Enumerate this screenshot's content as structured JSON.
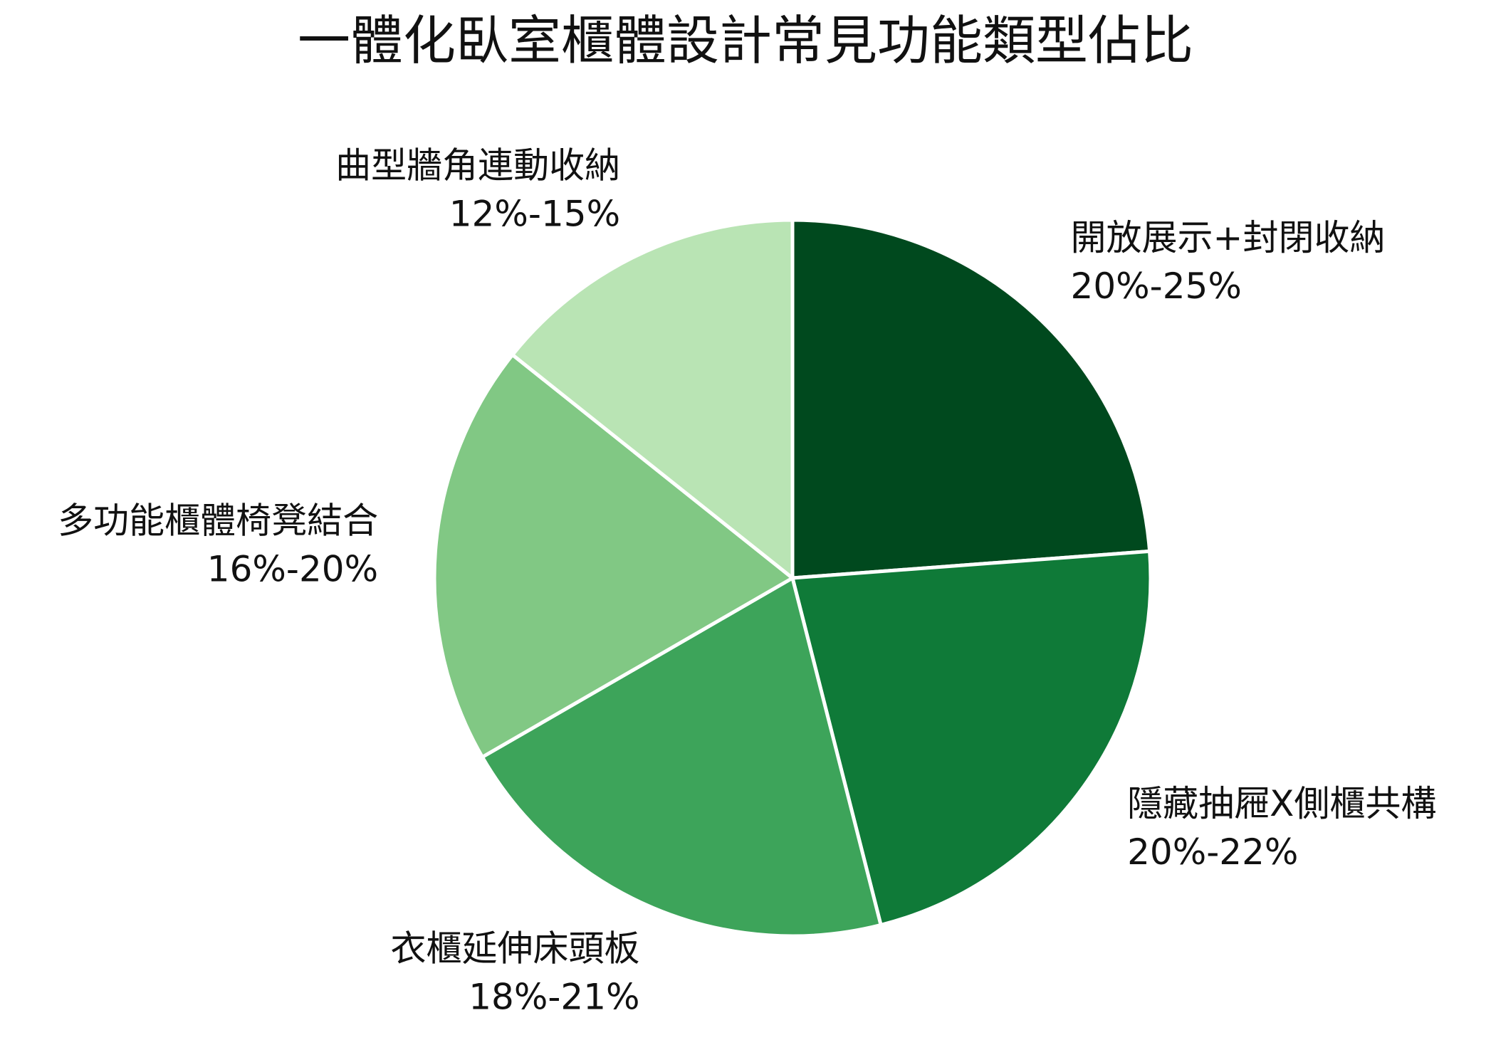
{
  "chart_data": {
    "type": "pie",
    "title": "一體化臥室櫃體設計常見功能類型佔比",
    "categories": [
      "開放展示+封閉收納",
      "隱藏抽屜X側櫃共構",
      "衣櫃延伸床頭板",
      "多功能櫃體椅凳結合",
      "曲型牆角連動收納"
    ],
    "values": [
      22.5,
      21,
      19.5,
      18,
      13.5
    ],
    "value_labels": [
      "20%-25%",
      "20%-22%",
      "18%-21%",
      "16%-20%",
      "12%-15%"
    ],
    "colors": [
      "#00491e",
      "#0f7a38",
      "#3da45a",
      "#81c884",
      "#b9e4b4"
    ]
  }
}
